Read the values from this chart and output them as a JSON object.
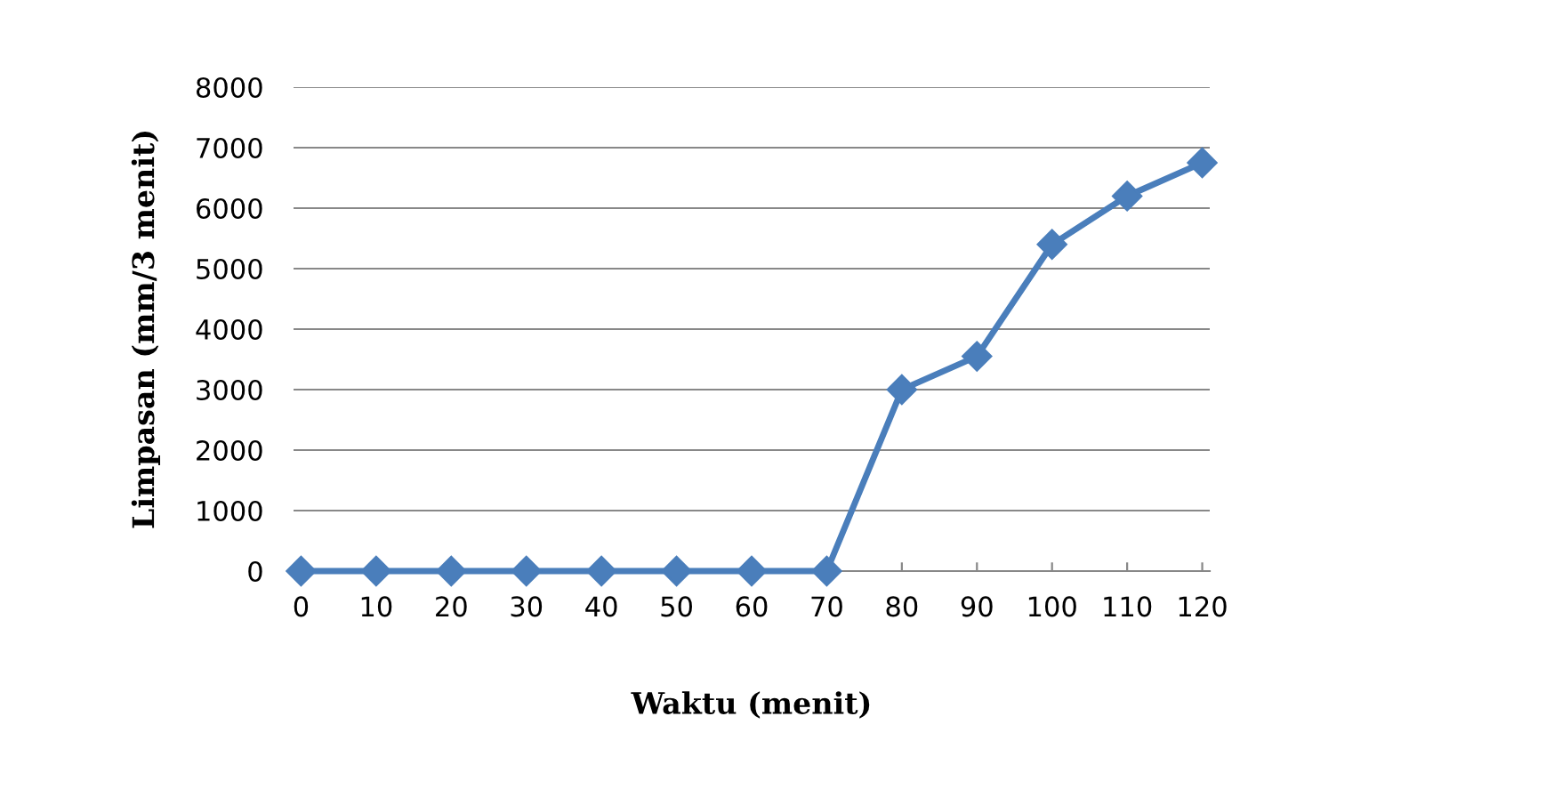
{
  "chart_data": {
    "type": "line",
    "xlabel": "Waktu (menit)",
    "ylabel": "Limpasan (mm/3 menit)",
    "categories": [
      "0",
      "10",
      "20",
      "30",
      "40",
      "50",
      "60",
      "70",
      "80",
      "90",
      "100",
      "110",
      "120"
    ],
    "series": [
      {
        "color": "#4a7ebb",
        "values": [
          0,
          0,
          0,
          0,
          0,
          0,
          0,
          0,
          3000,
          3550,
          5400,
          6200,
          6750
        ]
      }
    ],
    "ylim": [
      0,
      8000
    ],
    "yticks": [
      0,
      1000,
      2000,
      3000,
      4000,
      5000,
      6000,
      7000,
      8000
    ],
    "grid": "y",
    "marker": "diamond",
    "line_style": "solid",
    "legend": false
  }
}
